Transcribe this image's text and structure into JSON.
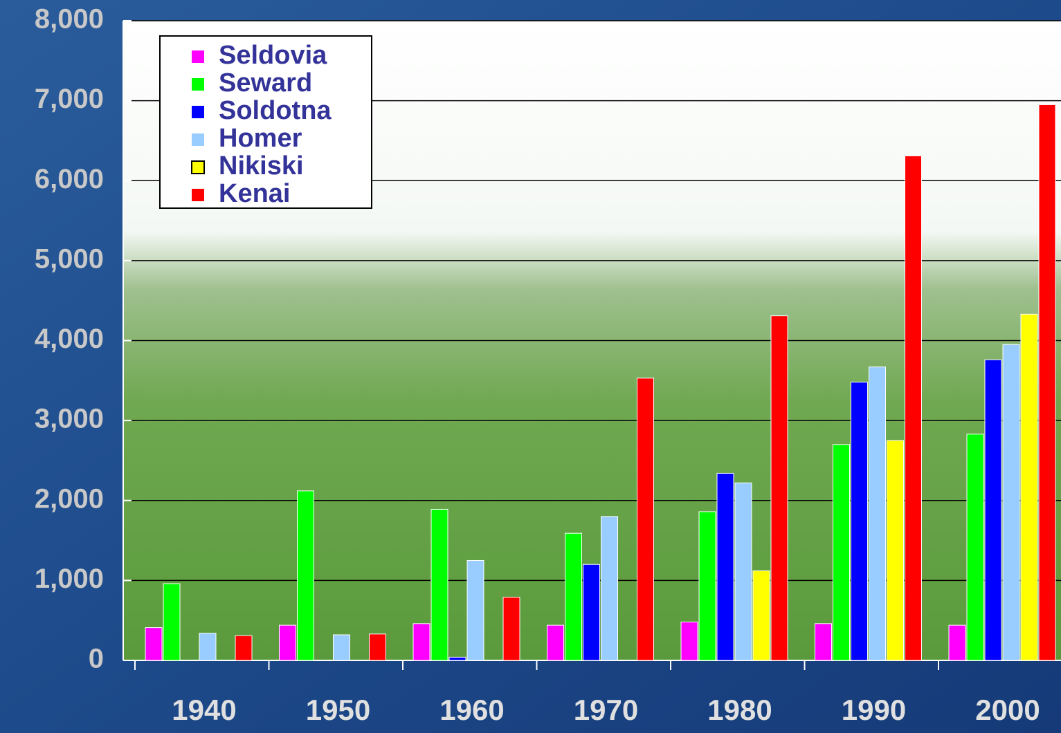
{
  "chart_data": {
    "type": "bar",
    "categories": [
      "1940",
      "1950",
      "1960",
      "1970",
      "1980",
      "1990",
      "2000"
    ],
    "series": [
      {
        "name": "Seldovia",
        "color": "#ff00ff",
        "values": [
          410,
          440,
          460,
          440,
          480,
          460,
          440
        ]
      },
      {
        "name": "Seward",
        "color": "#00ff00",
        "values": [
          960,
          2120,
          1890,
          1590,
          1860,
          2700,
          2830
        ]
      },
      {
        "name": "Soldotna",
        "color": "#0000ff",
        "values": [
          null,
          null,
          40,
          1200,
          2340,
          3480,
          3760
        ]
      },
      {
        "name": "Homer",
        "color": "#99ccff",
        "values": [
          340,
          320,
          1250,
          1800,
          2220,
          3670,
          3950
        ]
      },
      {
        "name": "Nikiski",
        "color": "#ffff00",
        "values": [
          null,
          null,
          null,
          null,
          1120,
          2750,
          4330
        ]
      },
      {
        "name": "Kenai",
        "color": "#ff0000",
        "values": [
          310,
          330,
          790,
          3530,
          4310,
          6310,
          6950
        ]
      }
    ],
    "ylim": [
      0,
      8000
    ],
    "yticks": [
      0,
      {
        "value": 1000,
        "label": "1,000"
      },
      {
        "value": 2000,
        "label": "2,000"
      },
      {
        "value": 3000,
        "label": "3,000"
      },
      {
        "value": 4000,
        "label": "4,000"
      },
      {
        "value": 5000,
        "label": "5,000"
      },
      {
        "value": 6000,
        "label": "6,000"
      },
      {
        "value": 7000,
        "label": "7,000"
      },
      {
        "value": 8000,
        "label": "8,000"
      }
    ],
    "grid": true
  }
}
